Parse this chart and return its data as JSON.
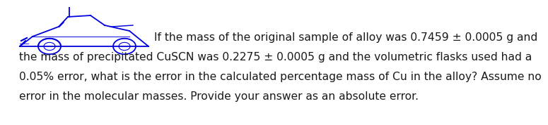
{
  "text_line1": "If the mass of the original sample of alloy was 0.7459 ± 0.0005 g and",
  "text_line2": "the mass of precipitated CuSCN was 0.2275 ± 0.0005 g and the volumetric flasks used had a",
  "text_line3": "0.05% error, what is the error in the calculated percentage mass of Cu in the alloy? Assume no",
  "text_line4": "error in the molecular masses. Provide your answer as an absolute error.",
  "text_color": "#1a1a1a",
  "background_color": "#ffffff",
  "font_size": 11.2,
  "car_color": "#0000dd"
}
